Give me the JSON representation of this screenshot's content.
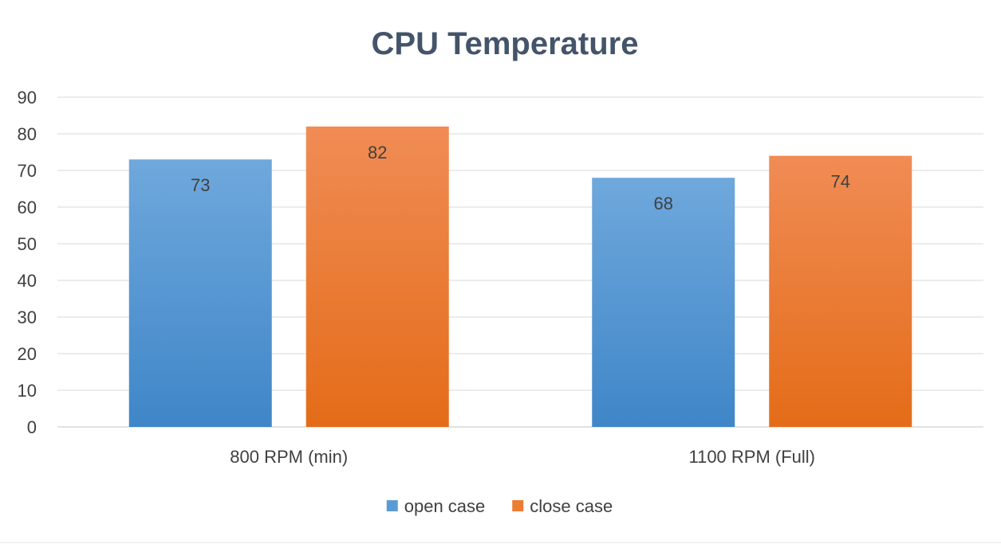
{
  "chart_data": {
    "type": "bar",
    "title": "CPU Temperature",
    "categories": [
      "800 RPM (min)",
      "1100 RPM (Full)"
    ],
    "series": [
      {
        "name": "open case",
        "values": [
          73,
          68
        ],
        "color": "#5b9bd5"
      },
      {
        "name": "close case",
        "values": [
          82,
          74
        ],
        "color": "#ed7d31"
      }
    ],
    "ylim": [
      0,
      90
    ],
    "yticks": [
      0,
      10,
      20,
      30,
      40,
      50,
      60,
      70,
      80,
      90
    ],
    "xlabel": "",
    "ylabel": "",
    "grid": true,
    "legend_position": "bottom",
    "data_labels": true
  }
}
